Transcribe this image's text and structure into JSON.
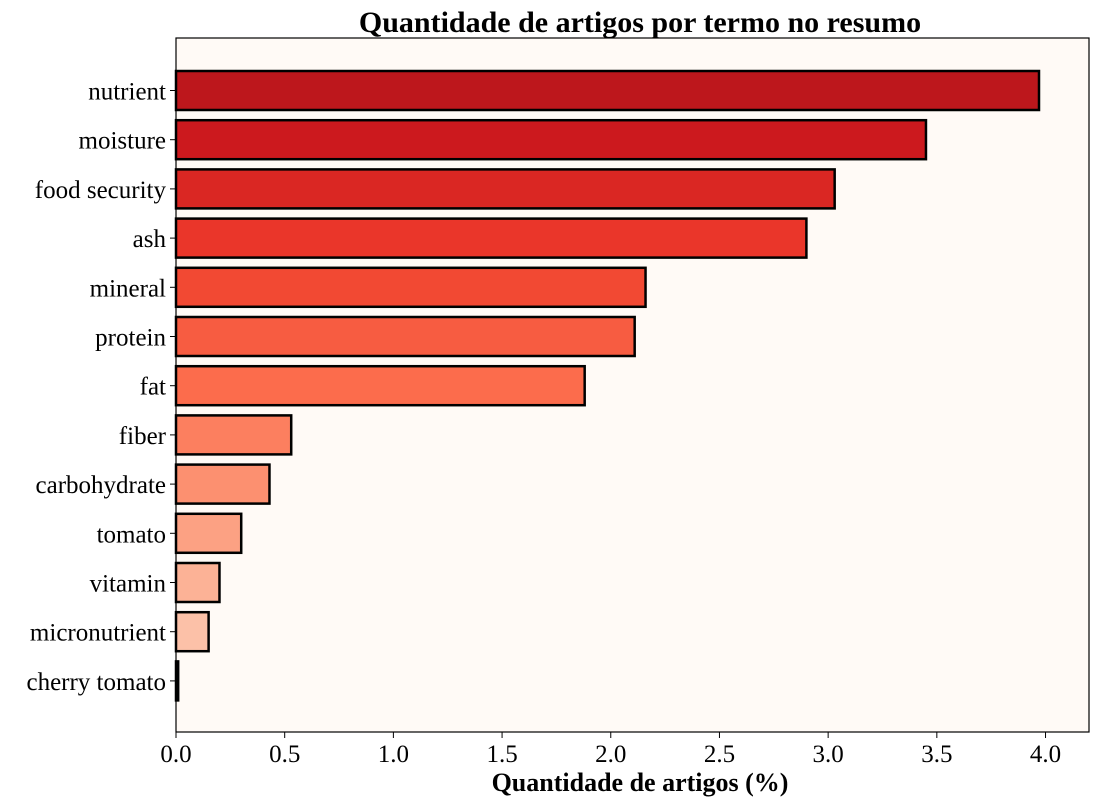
{
  "chart_data": {
    "type": "bar",
    "orientation": "horizontal",
    "title": "Quantidade de artigos por termo no resumo",
    "xlabel": "Quantidade de artigos (%)",
    "ylabel": "",
    "categories": [
      "nutrient",
      "moisture",
      "food security",
      "ash",
      "mineral",
      "protein",
      "fat",
      "fiber",
      "carbohydrate",
      "tomato",
      "vitamin",
      "micronutrient",
      "cherry tomato"
    ],
    "values": [
      3.97,
      3.45,
      3.03,
      2.9,
      2.16,
      2.11,
      1.88,
      0.53,
      0.43,
      0.3,
      0.2,
      0.15,
      0.01
    ],
    "colors": [
      "#bd171c",
      "#cc191e",
      "#da2723",
      "#ea362a",
      "#f24933",
      "#f75c41",
      "#fc6c4c",
      "#fc7f5f",
      "#fc9070",
      "#fca183",
      "#fcb296",
      "#fcc1a8",
      "#fdd1bc"
    ],
    "bar_edge_color": "#000000",
    "plot_background": "#fffaf6",
    "xlim": [
      0,
      4.2
    ],
    "xticks": [
      "0.0",
      "0.5",
      "1.0",
      "1.5",
      "2.0",
      "2.5",
      "3.0",
      "3.5",
      "4.0"
    ],
    "grid": false,
    "legend": "none"
  }
}
